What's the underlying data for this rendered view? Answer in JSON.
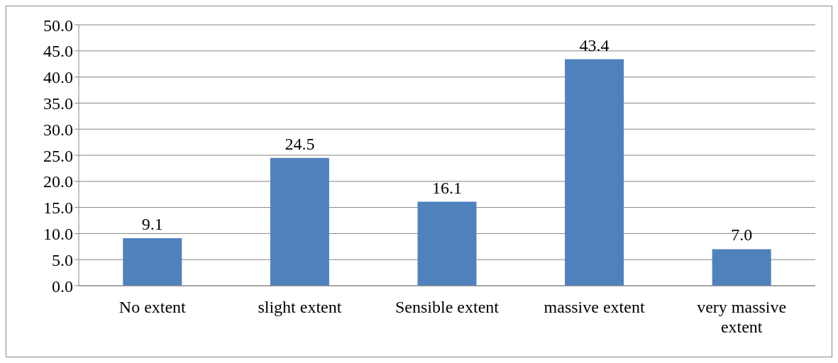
{
  "chart_data": {
    "type": "bar",
    "categories": [
      "No extent",
      "slight extent",
      "Sensible extent",
      "massive extent",
      "very massive extent"
    ],
    "values": [
      9.1,
      24.5,
      16.1,
      43.4,
      7.0
    ],
    "value_labels": [
      "9.1",
      "24.5",
      "16.1",
      "43.4",
      "7.0"
    ],
    "color": "#4f81bd",
    "ylim": [
      0,
      50
    ],
    "yticks": [
      {
        "value": 0,
        "label": "0.0"
      },
      {
        "value": 5,
        "label": "5.0"
      },
      {
        "value": 10,
        "label": "10.0"
      },
      {
        "value": 15,
        "label": "15.0"
      },
      {
        "value": 20,
        "label": "20.0"
      },
      {
        "value": 25,
        "label": "25.0"
      },
      {
        "value": 30,
        "label": "30.0"
      },
      {
        "value": 35,
        "label": "35.0"
      },
      {
        "value": 40,
        "label": "40.0"
      },
      {
        "value": 45,
        "label": "45.0"
      },
      {
        "value": 50,
        "label": "50.0"
      }
    ],
    "grid": "y"
  }
}
